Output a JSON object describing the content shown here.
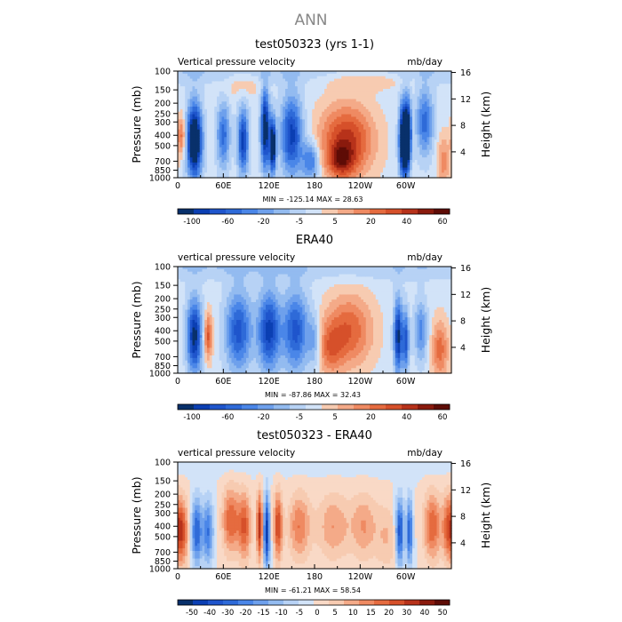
{
  "figure": {
    "title": "ANN"
  },
  "palettes": {
    "main": [
      "#08306b",
      "#0b3fb3",
      "#1f55cc",
      "#2e6ad8",
      "#4a86e8",
      "#6ea0ec",
      "#93bbf0",
      "#b7d2f5",
      "#d2e3f8",
      "#f7cbb1",
      "#f4aa88",
      "#ef8a62",
      "#e56b3f",
      "#d6502a",
      "#b7321a",
      "#8a1a0d",
      "#5e0c06"
    ],
    "diff": [
      "#08306b",
      "#0b3fb3",
      "#1f55cc",
      "#2e6ad8",
      "#4a86e8",
      "#6ea0ec",
      "#93bbf0",
      "#b7d2f5",
      "#d2e3f8",
      "#f9d9c6",
      "#f7cbb1",
      "#f4aa88",
      "#ef8a62",
      "#e56b3f",
      "#d6502a",
      "#b7321a",
      "#8a1a0d",
      "#5e0c06"
    ]
  },
  "chart_data": [
    {
      "type": "heatmap",
      "title": "test050323 (yrs 1-1)",
      "corner_left": "Vertical pressure velocity",
      "corner_right": "mb/day",
      "ylabel": "Pressure (mb)",
      "y2label": "Height (km)",
      "x_ticks": [
        "0",
        "60E",
        "120E",
        "180",
        "120W",
        "60W"
      ],
      "y_ticks": [
        "100",
        "150",
        "200",
        "250",
        "300",
        "400",
        "500",
        "700",
        "850",
        "1000"
      ],
      "y2_ticks": [
        "16",
        "12",
        "8",
        "4"
      ],
      "stats": "MIN = -125.14   MAX =  28.63",
      "colorbar_labels": [
        "-100",
        "-60",
        "-20",
        "-5",
        "5",
        "20",
        "40",
        "60"
      ],
      "palette": "main",
      "features": [
        {
          "lon": 22,
          "pr": 450,
          "lw": 7,
          "pw": 0.55,
          "amp": -11,
          "lt": 0
        },
        {
          "lon": 5,
          "pr": 400,
          "lw": 4,
          "pw": 0.3,
          "amp": 4,
          "lt": 0
        },
        {
          "lon": 60,
          "pr": 400,
          "lw": 6,
          "pw": 0.5,
          "amp": -5,
          "lt": 0
        },
        {
          "lon": 86,
          "pr": 450,
          "lw": 5,
          "pw": 0.5,
          "amp": -7,
          "lt": 0
        },
        {
          "lon": 115,
          "pr": 350,
          "lw": 4,
          "pw": 0.6,
          "amp": -9,
          "lt": 0
        },
        {
          "lon": 125,
          "pr": 500,
          "lw": 3,
          "pw": 0.4,
          "amp": -10,
          "lt": 0
        },
        {
          "lon": 150,
          "pr": 400,
          "lw": 10,
          "pw": 0.6,
          "amp": -7,
          "lt": 0
        },
        {
          "lon": 175,
          "pr": 700,
          "lw": 8,
          "pw": 0.3,
          "amp": -5,
          "lt": 0
        },
        {
          "lon": 222,
          "pr": 450,
          "lw": 25,
          "pw": 0.55,
          "amp": 6,
          "lt": 0
        },
        {
          "lon": 215,
          "pr": 700,
          "lw": 12,
          "pw": 0.25,
          "amp": 4,
          "lt": 0
        },
        {
          "lon": 297,
          "pr": 450,
          "lw": 4,
          "pw": 0.55,
          "amp": -12,
          "lt": 0
        },
        {
          "lon": 303,
          "pr": 400,
          "lw": 3,
          "pw": 0.5,
          "amp": -9,
          "lt": 0
        },
        {
          "lon": 325,
          "pr": 300,
          "lw": 8,
          "pw": 0.5,
          "amp": -5,
          "lt": 0
        },
        {
          "lon": 350,
          "pr": 700,
          "lw": 6,
          "pw": 0.4,
          "amp": 3,
          "lt": 0
        },
        {
          "lon": 0,
          "pr": 100,
          "lw": 360,
          "pw": 0.2,
          "amp": -1.5,
          "lt": 0
        },
        {
          "lon": 250,
          "pr": 120,
          "lw": 40,
          "pw": 0.15,
          "amp": 2,
          "lt": 0
        },
        {
          "lon": 85,
          "pr": 130,
          "lw": 20,
          "pw": 0.2,
          "amp": 1.5,
          "lt": 0
        }
      ]
    },
    {
      "type": "heatmap",
      "title": "ERA40",
      "corner_left": "vertical pressure velocity",
      "corner_right": "mb/day",
      "ylabel": "Pressure (mb)",
      "y2label": "Height (km)",
      "x_ticks": [
        "0",
        "60E",
        "120E",
        "180",
        "120W",
        "60W"
      ],
      "y_ticks": [
        "100",
        "150",
        "200",
        "250",
        "300",
        "400",
        "500",
        "700",
        "850",
        "1000"
      ],
      "y2_ticks": [
        "16",
        "12",
        "8",
        "4"
      ],
      "stats": "MIN = -87.86   MAX =  32.43",
      "colorbar_labels": [
        "-100",
        "-60",
        "-20",
        "-5",
        "5",
        "20",
        "40",
        "60"
      ],
      "palette": "main",
      "features": [
        {
          "lon": 22,
          "pr": 450,
          "lw": 7,
          "pw": 0.55,
          "amp": -8,
          "lt": 0
        },
        {
          "lon": 40,
          "pr": 450,
          "lw": 4,
          "pw": 0.35,
          "amp": 5,
          "lt": 0
        },
        {
          "lon": 80,
          "pr": 400,
          "lw": 12,
          "pw": 0.6,
          "amp": -6,
          "lt": 0
        },
        {
          "lon": 120,
          "pr": 400,
          "lw": 10,
          "pw": 0.6,
          "amp": -7,
          "lt": 0
        },
        {
          "lon": 155,
          "pr": 400,
          "lw": 12,
          "pw": 0.6,
          "amp": -6,
          "lt": 0
        },
        {
          "lon": 180,
          "pr": 500,
          "lw": 6,
          "pw": 0.4,
          "amp": -3,
          "lt": 0
        },
        {
          "lon": 225,
          "pr": 400,
          "lw": 22,
          "pw": 0.55,
          "amp": 4.5,
          "lt": 0
        },
        {
          "lon": 200,
          "pr": 600,
          "lw": 12,
          "pw": 0.4,
          "amp": 3,
          "lt": 0
        },
        {
          "lon": 290,
          "pr": 450,
          "lw": 4,
          "pw": 0.55,
          "amp": -8,
          "lt": 0
        },
        {
          "lon": 300,
          "pr": 500,
          "lw": 3,
          "pw": 0.45,
          "amp": -6,
          "lt": 0
        },
        {
          "lon": 320,
          "pr": 400,
          "lw": 6,
          "pw": 0.45,
          "amp": -4,
          "lt": 0
        },
        {
          "lon": 345,
          "pr": 600,
          "lw": 8,
          "pw": 0.45,
          "amp": 4,
          "lt": 0
        },
        {
          "lon": 0,
          "pr": 100,
          "lw": 360,
          "pw": 0.2,
          "amp": -1.5,
          "lt": 0
        }
      ]
    },
    {
      "type": "heatmap",
      "title": "test050323 - ERA40",
      "corner_left": "vertical pressure velocity",
      "corner_right": "mb/day",
      "ylabel": "Pressure (mb)",
      "y2label": "Height (km)",
      "x_ticks": [
        "0",
        "60E",
        "120E",
        "180",
        "120W",
        "60W"
      ],
      "y_ticks": [
        "100",
        "150",
        "200",
        "250",
        "300",
        "400",
        "500",
        "700",
        "850",
        "1000"
      ],
      "y2_ticks": [
        "16",
        "12",
        "8",
        "4"
      ],
      "stats": "MIN = -61.21   MAX =  58.54",
      "colorbar_labels": [
        "-50",
        "-40",
        "-30",
        "-20",
        "-15",
        "-10",
        "-5",
        "0",
        "5",
        "10",
        "15",
        "20",
        "30",
        "40",
        "50"
      ],
      "palette": "diff",
      "features": [
        {
          "lon": 5,
          "pr": 450,
          "lw": 6,
          "pw": 0.5,
          "amp": 6,
          "lt": 0
        },
        {
          "lon": 25,
          "pr": 450,
          "lw": 5,
          "pw": 0.5,
          "amp": -6,
          "lt": 0
        },
        {
          "lon": 40,
          "pr": 450,
          "lw": 5,
          "pw": 0.5,
          "amp": -5,
          "lt": 0
        },
        {
          "lon": 70,
          "pr": 350,
          "lw": 8,
          "pw": 0.5,
          "amp": 5,
          "lt": 0
        },
        {
          "lon": 88,
          "pr": 400,
          "lw": 6,
          "pw": 0.5,
          "amp": 5,
          "lt": 0
        },
        {
          "lon": 108,
          "pr": 400,
          "lw": 3,
          "pw": 0.5,
          "amp": 7,
          "lt": 0
        },
        {
          "lon": 117,
          "pr": 450,
          "lw": 3,
          "pw": 0.55,
          "amp": -8,
          "lt": 0
        },
        {
          "lon": 132,
          "pr": 400,
          "lw": 4,
          "pw": 0.5,
          "amp": 6,
          "lt": 0
        },
        {
          "lon": 160,
          "pr": 400,
          "lw": 10,
          "pw": 0.5,
          "amp": 4,
          "lt": 0
        },
        {
          "lon": 205,
          "pr": 400,
          "lw": 15,
          "pw": 0.5,
          "amp": 3,
          "lt": 0
        },
        {
          "lon": 245,
          "pr": 400,
          "lw": 12,
          "pw": 0.5,
          "amp": 3,
          "lt": 0
        },
        {
          "lon": 275,
          "pr": 500,
          "lw": 10,
          "pw": 0.5,
          "amp": 2,
          "lt": 0
        },
        {
          "lon": 292,
          "pr": 450,
          "lw": 4,
          "pw": 0.5,
          "amp": -7,
          "lt": 0
        },
        {
          "lon": 305,
          "pr": 450,
          "lw": 3,
          "pw": 0.5,
          "amp": -6,
          "lt": 0
        },
        {
          "lon": 335,
          "pr": 400,
          "lw": 8,
          "pw": 0.5,
          "amp": 5,
          "lt": 0
        },
        {
          "lon": 355,
          "pr": 400,
          "lw": 5,
          "pw": 0.5,
          "amp": 4,
          "lt": 0
        },
        {
          "lon": 0,
          "pr": 100,
          "lw": 360,
          "pw": 0.2,
          "amp": -0.8,
          "lt": 0
        }
      ]
    }
  ]
}
